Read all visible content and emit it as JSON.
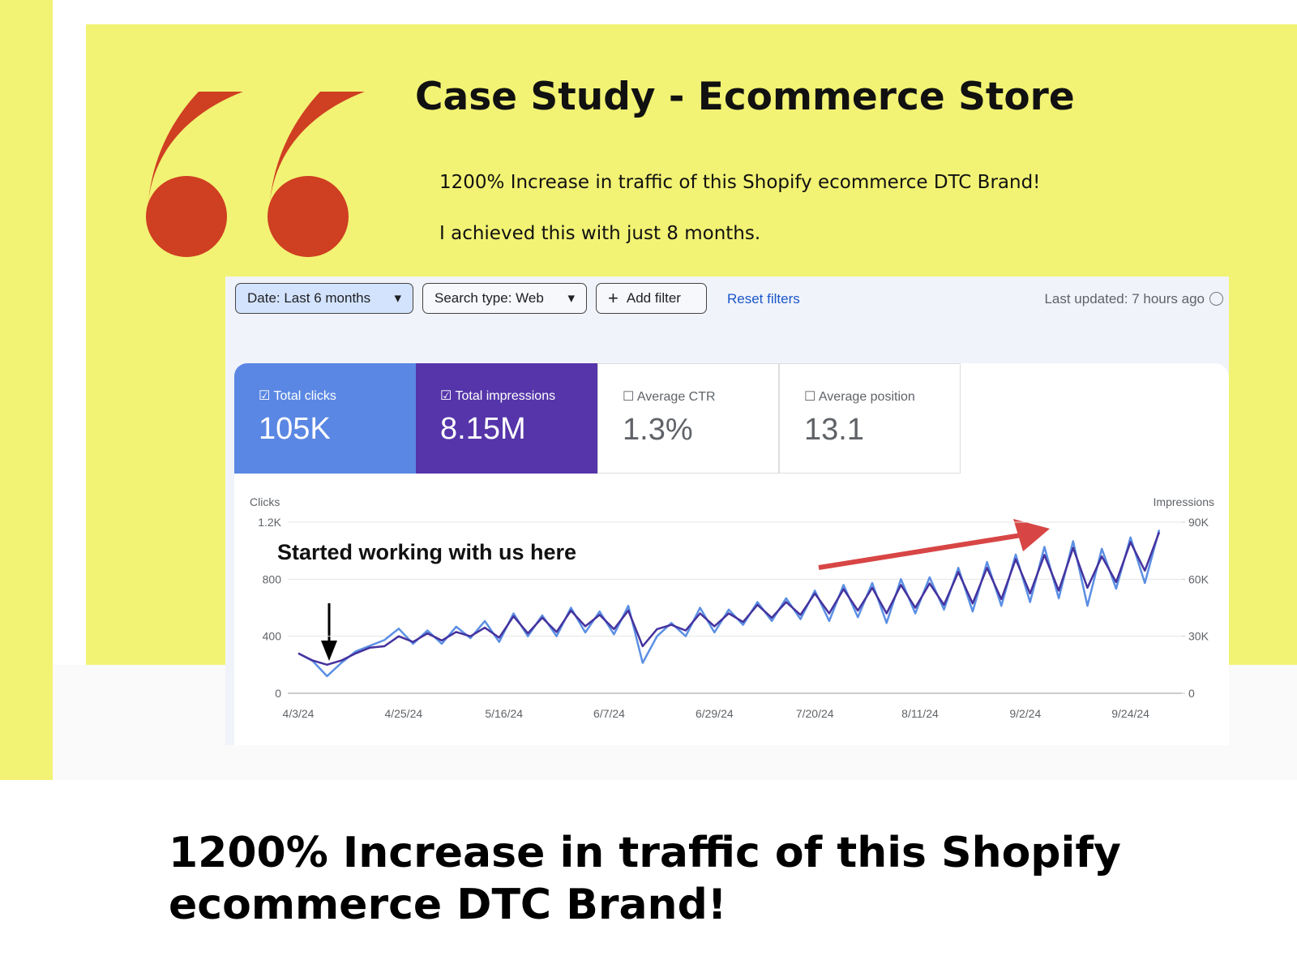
{
  "header": {
    "title": "Case Study - Ecommerce Store",
    "lines": [
      "1200% Increase in traffic of this Shopify ecommerce DTC Brand!",
      "I achieved this with just 8 months."
    ]
  },
  "toolbar": {
    "filters": [
      "Date: Last 6 months",
      "Search type: Web",
      "Add filter"
    ],
    "reset": "Reset filters",
    "last_updated": "Last updated: 7 hours ago"
  },
  "metrics": [
    {
      "label": "Total clicks",
      "value": "105K"
    },
    {
      "label": "Total impressions",
      "value": "8.15M"
    },
    {
      "label": "Average CTR",
      "value": "1.3%"
    },
    {
      "label": "Average position",
      "value": "13.1"
    }
  ],
  "chart_data": {
    "type": "line",
    "annotation": "Started working with us here",
    "y_label": "Clicks",
    "y2_label": "Impressions",
    "x": [
      "4/3/24",
      "4/6/24",
      "4/9/24",
      "4/12/24",
      "4/15/24",
      "4/18/24",
      "4/21/24",
      "4/24/24",
      "4/27/24",
      "4/30/24",
      "5/3/24",
      "5/6/24",
      "5/9/24",
      "5/12/24",
      "5/15/24",
      "5/18/24",
      "5/21/24",
      "5/24/24",
      "5/27/24",
      "5/30/24",
      "6/2/24",
      "6/5/24",
      "6/8/24",
      "6/11/24",
      "6/14/24",
      "6/17/24",
      "6/20/24",
      "6/23/24",
      "6/26/24",
      "6/29/24",
      "7/2/24",
      "7/5/24",
      "7/8/24",
      "7/11/24",
      "7/14/24",
      "7/17/24",
      "7/20/24",
      "7/23/24",
      "7/26/24",
      "7/29/24",
      "8/1/24",
      "8/4/24",
      "8/7/24",
      "8/10/24",
      "8/13/24",
      "8/16/24",
      "8/19/24",
      "8/22/24",
      "8/25/24",
      "8/28/24",
      "8/31/24",
      "9/3/24",
      "9/6/24",
      "9/9/24",
      "9/12/24",
      "9/15/24",
      "9/18/24",
      "9/21/24",
      "9/24/24",
      "9/27/24",
      "9/30/24"
    ],
    "series": [
      {
        "name": "Clicks",
        "color": "#45329e",
        "values": [
          280,
          230,
          200,
          230,
          280,
          320,
          330,
          400,
          360,
          420,
          370,
          430,
          400,
          460,
          390,
          540,
          420,
          530,
          430,
          580,
          470,
          550,
          450,
          580,
          330,
          450,
          480,
          440,
          560,
          470,
          560,
          500,
          620,
          530,
          640,
          550,
          700,
          560,
          730,
          580,
          740,
          560,
          760,
          600,
          770,
          620,
          850,
          630,
          880,
          660,
          940,
          700,
          970,
          720,
          1020,
          740,
          960,
          780,
          1060,
          860,
          1130
        ]
      },
      {
        "name": "Impressions",
        "color": "#5b8fe3",
        "axis": "y2",
        "values": [
          21000,
          17000,
          9000,
          16000,
          22000,
          25000,
          28000,
          34000,
          26000,
          33000,
          26000,
          35000,
          29000,
          38000,
          27000,
          42000,
          30000,
          41000,
          30000,
          45000,
          32000,
          43000,
          31000,
          46000,
          16000,
          30000,
          37000,
          30000,
          45000,
          32000,
          44000,
          36000,
          48000,
          38000,
          50000,
          39000,
          54000,
          38000,
          57000,
          40000,
          58000,
          37000,
          60000,
          42000,
          61000,
          44000,
          66000,
          43000,
          69000,
          46000,
          73000,
          48000,
          77000,
          50000,
          80000,
          46000,
          76000,
          55000,
          82000,
          58000,
          86000
        ]
      }
    ],
    "xticks": [
      "4/3/24",
      "4/25/24",
      "5/16/24",
      "6/7/24",
      "6/29/24",
      "7/20/24",
      "8/11/24",
      "9/2/24",
      "9/24/24"
    ],
    "ylim": [
      0,
      1200
    ],
    "yticks": [
      0,
      400,
      800,
      {
        "value": 1200,
        "label": "1.2K"
      }
    ],
    "y2lim": [
      0,
      90000
    ],
    "y2ticks": [
      0,
      {
        "value": 30000,
        "label": "30K"
      },
      {
        "value": 60000,
        "label": "60K"
      },
      {
        "value": 90000,
        "label": "90K"
      }
    ],
    "grid": true
  },
  "caption": "1200% Increase in traffic of this Shopify ecommerce DTC Brand!"
}
